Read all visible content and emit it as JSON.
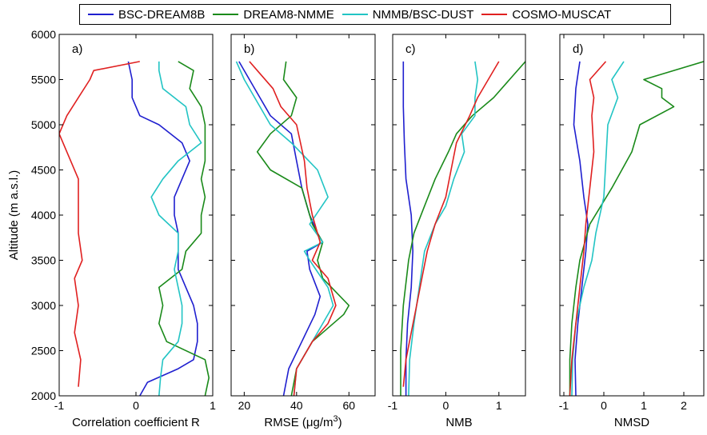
{
  "legend": {
    "items": [
      {
        "label": "BSC-DREAM8B",
        "color": "#1f1fcf"
      },
      {
        "label": "DREAM8-NMME",
        "color": "#1a8a1a"
      },
      {
        "label": "NMMB/BSC-DUST",
        "color": "#22c4c4"
      },
      {
        "label": "COSMO-MUSCAT",
        "color": "#e02020"
      }
    ]
  },
  "ylabel": "Altitude (m a.s.l.)",
  "yticks": [
    "2000",
    "2500",
    "3000",
    "3500",
    "4000",
    "4500",
    "5000",
    "5500",
    "6000"
  ],
  "chart_data": [
    {
      "type": "line",
      "panel_label": "a)",
      "xlabel": "Correlation coefficient R",
      "xlim": [
        -1,
        1
      ],
      "ylim": [
        2000,
        6000
      ],
      "xticks": [
        -1,
        0,
        1
      ],
      "series": [
        {
          "name": "BSC-DREAM8B",
          "points": [
            [
              0.05,
              2000
            ],
            [
              0.15,
              2150
            ],
            [
              0.55,
              2300
            ],
            [
              0.75,
              2400
            ],
            [
              0.8,
              2600
            ],
            [
              0.8,
              2800
            ],
            [
              0.75,
              3000
            ],
            [
              0.65,
              3200
            ],
            [
              0.55,
              3400
            ],
            [
              0.55,
              3600
            ],
            [
              0.55,
              3800
            ],
            [
              0.5,
              4000
            ],
            [
              0.5,
              4200
            ],
            [
              0.6,
              4400
            ],
            [
              0.7,
              4600
            ],
            [
              0.6,
              4800
            ],
            [
              0.3,
              5000
            ],
            [
              0.05,
              5100
            ],
            [
              -0.05,
              5300
            ],
            [
              -0.05,
              5500
            ],
            [
              -0.1,
              5700
            ]
          ]
        },
        {
          "name": "DREAM8-NMME",
          "points": [
            [
              0.9,
              2000
            ],
            [
              0.95,
              2200
            ],
            [
              0.9,
              2400
            ],
            [
              0.4,
              2600
            ],
            [
              0.3,
              2800
            ],
            [
              0.35,
              3000
            ],
            [
              0.3,
              3200
            ],
            [
              0.6,
              3400
            ],
            [
              0.65,
              3600
            ],
            [
              0.85,
              3800
            ],
            [
              0.85,
              4000
            ],
            [
              0.9,
              4200
            ],
            [
              0.85,
              4400
            ],
            [
              0.9,
              4600
            ],
            [
              0.9,
              4800
            ],
            [
              0.9,
              5000
            ],
            [
              0.85,
              5200
            ],
            [
              0.7,
              5400
            ],
            [
              0.75,
              5600
            ],
            [
              0.55,
              5700
            ]
          ]
        },
        {
          "name": "NMMB/BSC-DUST",
          "points": [
            [
              0.3,
              2000
            ],
            [
              0.32,
              2200
            ],
            [
              0.35,
              2400
            ],
            [
              0.55,
              2600
            ],
            [
              0.6,
              2800
            ],
            [
              0.6,
              3000
            ],
            [
              0.55,
              3200
            ],
            [
              0.5,
              3400
            ],
            [
              0.55,
              3600
            ],
            [
              0.55,
              3800
            ],
            [
              0.3,
              4000
            ],
            [
              0.2,
              4200
            ],
            [
              0.35,
              4400
            ],
            [
              0.55,
              4600
            ],
            [
              0.85,
              4800
            ],
            [
              0.7,
              5000
            ],
            [
              0.65,
              5200
            ],
            [
              0.35,
              5400
            ],
            [
              0.3,
              5600
            ],
            [
              0.3,
              5700
            ]
          ]
        },
        {
          "name": "COSMO-MUSCAT",
          "points": [
            [
              -0.75,
              2100
            ],
            [
              -0.72,
              2400
            ],
            [
              -0.8,
              2700
            ],
            [
              -0.75,
              3000
            ],
            [
              -0.8,
              3300
            ],
            [
              -0.7,
              3500
            ],
            [
              -0.75,
              3800
            ],
            [
              -0.75,
              4100
            ],
            [
              -0.75,
              4400
            ],
            [
              -0.9,
              4700
            ],
            [
              -1.0,
              4900
            ],
            [
              -0.9,
              5100
            ],
            [
              -0.75,
              5300
            ],
            [
              -0.6,
              5500
            ],
            [
              -0.55,
              5600
            ],
            [
              0.05,
              5700
            ]
          ]
        }
      ]
    },
    {
      "type": "line",
      "panel_label": "b)",
      "xlabel": "RMSE (μg/m3)",
      "xlim": [
        15,
        70
      ],
      "ylim": [
        2000,
        6000
      ],
      "xticks": [
        20,
        40,
        60
      ],
      "series": [
        {
          "name": "BSC-DREAM8B",
          "points": [
            [
              35,
              2000
            ],
            [
              37,
              2300
            ],
            [
              42,
              2600
            ],
            [
              47,
              2900
            ],
            [
              49,
              3100
            ],
            [
              45,
              3400
            ],
            [
              44,
              3600
            ],
            [
              50,
              3700
            ],
            [
              48,
              3800
            ],
            [
              45,
              4000
            ],
            [
              42,
              4300
            ],
            [
              40,
              4600
            ],
            [
              38,
              4900
            ],
            [
              30,
              5100
            ],
            [
              26,
              5300
            ],
            [
              22,
              5500
            ],
            [
              18,
              5700
            ]
          ]
        },
        {
          "name": "DREAM8-NMME",
          "points": [
            [
              38,
              2000
            ],
            [
              40,
              2300
            ],
            [
              46,
              2600
            ],
            [
              58,
              2900
            ],
            [
              60,
              3000
            ],
            [
              50,
              3300
            ],
            [
              48,
              3500
            ],
            [
              50,
              3700
            ],
            [
              46,
              3900
            ],
            [
              44,
              4100
            ],
            [
              42,
              4300
            ],
            [
              30,
              4500
            ],
            [
              25,
              4700
            ],
            [
              30,
              4900
            ],
            [
              38,
              5100
            ],
            [
              40,
              5300
            ],
            [
              35,
              5500
            ],
            [
              36,
              5700
            ]
          ]
        },
        {
          "name": "NMMB/BSC-DUST",
          "points": [
            [
              39,
              2000
            ],
            [
              40,
              2300
            ],
            [
              48,
              2700
            ],
            [
              54,
              3000
            ],
            [
              52,
              3200
            ],
            [
              45,
              3500
            ],
            [
              43,
              3600
            ],
            [
              50,
              3700
            ],
            [
              45,
              3900
            ],
            [
              52,
              4200
            ],
            [
              48,
              4500
            ],
            [
              38,
              4800
            ],
            [
              30,
              5000
            ],
            [
              26,
              5200
            ],
            [
              20,
              5500
            ],
            [
              17,
              5700
            ]
          ]
        },
        {
          "name": "COSMO-MUSCAT",
          "points": [
            [
              39,
              2000
            ],
            [
              40,
              2300
            ],
            [
              46,
              2600
            ],
            [
              52,
              2800
            ],
            [
              55,
              3000
            ],
            [
              52,
              3300
            ],
            [
              46,
              3500
            ],
            [
              49,
              3700
            ],
            [
              48,
              3800
            ],
            [
              46,
              4000
            ],
            [
              44,
              4300
            ],
            [
              43,
              4600
            ],
            [
              40,
              5000
            ],
            [
              34,
              5200
            ],
            [
              31,
              5400
            ],
            [
              25,
              5600
            ],
            [
              22,
              5700
            ]
          ]
        }
      ]
    },
    {
      "type": "line",
      "panel_label": "c)",
      "xlabel": "NMB",
      "xlim": [
        -1,
        1.5
      ],
      "ylim": [
        2000,
        6000
      ],
      "xticks": [
        -1,
        0,
        1
      ],
      "series": [
        {
          "name": "BSC-DREAM8B",
          "points": [
            [
              -0.75,
              2000
            ],
            [
              -0.75,
              2400
            ],
            [
              -0.72,
              2800
            ],
            [
              -0.65,
              3200
            ],
            [
              -0.62,
              3600
            ],
            [
              -0.65,
              4000
            ],
            [
              -0.75,
              4400
            ],
            [
              -0.78,
              4800
            ],
            [
              -0.8,
              5200
            ],
            [
              -0.8,
              5700
            ]
          ]
        },
        {
          "name": "DREAM8-NMME",
          "points": [
            [
              -0.85,
              2000
            ],
            [
              -0.85,
              2500
            ],
            [
              -0.8,
              3000
            ],
            [
              -0.7,
              3500
            ],
            [
              -0.6,
              3800
            ],
            [
              -0.4,
              4100
            ],
            [
              -0.2,
              4400
            ],
            [
              0.05,
              4700
            ],
            [
              0.2,
              4900
            ],
            [
              0.5,
              5100
            ],
            [
              0.9,
              5300
            ],
            [
              1.2,
              5500
            ],
            [
              1.5,
              5700
            ]
          ]
        },
        {
          "name": "NMMB/BSC-DUST",
          "points": [
            [
              -0.7,
              2000
            ],
            [
              -0.68,
              2400
            ],
            [
              -0.6,
              2800
            ],
            [
              -0.5,
              3200
            ],
            [
              -0.4,
              3600
            ],
            [
              -0.2,
              3900
            ],
            [
              0.0,
              4100
            ],
            [
              0.15,
              4400
            ],
            [
              0.35,
              4700
            ],
            [
              0.3,
              4900
            ],
            [
              0.55,
              5100
            ],
            [
              0.55,
              5300
            ],
            [
              0.6,
              5500
            ],
            [
              0.55,
              5700
            ]
          ]
        },
        {
          "name": "COSMO-MUSCAT",
          "points": [
            [
              -0.8,
              2100
            ],
            [
              -0.75,
              2400
            ],
            [
              -0.65,
              2700
            ],
            [
              -0.55,
              3000
            ],
            [
              -0.45,
              3300
            ],
            [
              -0.35,
              3600
            ],
            [
              -0.2,
              3900
            ],
            [
              0.0,
              4200
            ],
            [
              0.1,
              4500
            ],
            [
              0.2,
              4800
            ],
            [
              0.45,
              5100
            ],
            [
              0.6,
              5300
            ],
            [
              0.8,
              5500
            ],
            [
              1.0,
              5700
            ]
          ]
        }
      ]
    },
    {
      "type": "line",
      "panel_label": "d)",
      "xlabel": "NMSD",
      "xlim": [
        -1.1,
        2.5
      ],
      "ylim": [
        2000,
        6000
      ],
      "xticks": [
        -1,
        0,
        1,
        2
      ],
      "series": [
        {
          "name": "BSC-DREAM8B",
          "points": [
            [
              -0.7,
              2000
            ],
            [
              -0.72,
              2400
            ],
            [
              -0.65,
              2800
            ],
            [
              -0.55,
              3200
            ],
            [
              -0.45,
              3600
            ],
            [
              -0.4,
              3900
            ],
            [
              -0.5,
              4200
            ],
            [
              -0.6,
              4600
            ],
            [
              -0.75,
              5000
            ],
            [
              -0.7,
              5400
            ],
            [
              -0.6,
              5700
            ]
          ]
        },
        {
          "name": "DREAM8-NMME",
          "points": [
            [
              -0.85,
              2000
            ],
            [
              -0.85,
              2400
            ],
            [
              -0.8,
              2800
            ],
            [
              -0.7,
              3200
            ],
            [
              -0.6,
              3500
            ],
            [
              -0.35,
              3900
            ],
            [
              0.2,
              4300
            ],
            [
              0.7,
              4700
            ],
            [
              0.9,
              5000
            ],
            [
              1.75,
              5200
            ],
            [
              1.45,
              5300
            ],
            [
              1.45,
              5400
            ],
            [
              1.0,
              5500
            ],
            [
              2.5,
              5700
            ]
          ]
        },
        {
          "name": "NMMB/BSC-DUST",
          "points": [
            [
              -0.8,
              2000
            ],
            [
              -0.78,
              2400
            ],
            [
              -0.7,
              2800
            ],
            [
              -0.5,
              3200
            ],
            [
              -0.3,
              3500
            ],
            [
              -0.2,
              3800
            ],
            [
              0.0,
              4200
            ],
            [
              0.05,
              4600
            ],
            [
              0.1,
              5000
            ],
            [
              0.35,
              5300
            ],
            [
              0.2,
              5500
            ],
            [
              0.5,
              5700
            ]
          ]
        },
        {
          "name": "COSMO-MUSCAT",
          "points": [
            [
              -0.85,
              2000
            ],
            [
              -0.8,
              2400
            ],
            [
              -0.7,
              2800
            ],
            [
              -0.6,
              3200
            ],
            [
              -0.5,
              3600
            ],
            [
              -0.45,
              3900
            ],
            [
              -0.35,
              4300
            ],
            [
              -0.25,
              4700
            ],
            [
              -0.3,
              5100
            ],
            [
              -0.25,
              5300
            ],
            [
              -0.35,
              5500
            ],
            [
              0.05,
              5700
            ]
          ]
        }
      ]
    }
  ]
}
